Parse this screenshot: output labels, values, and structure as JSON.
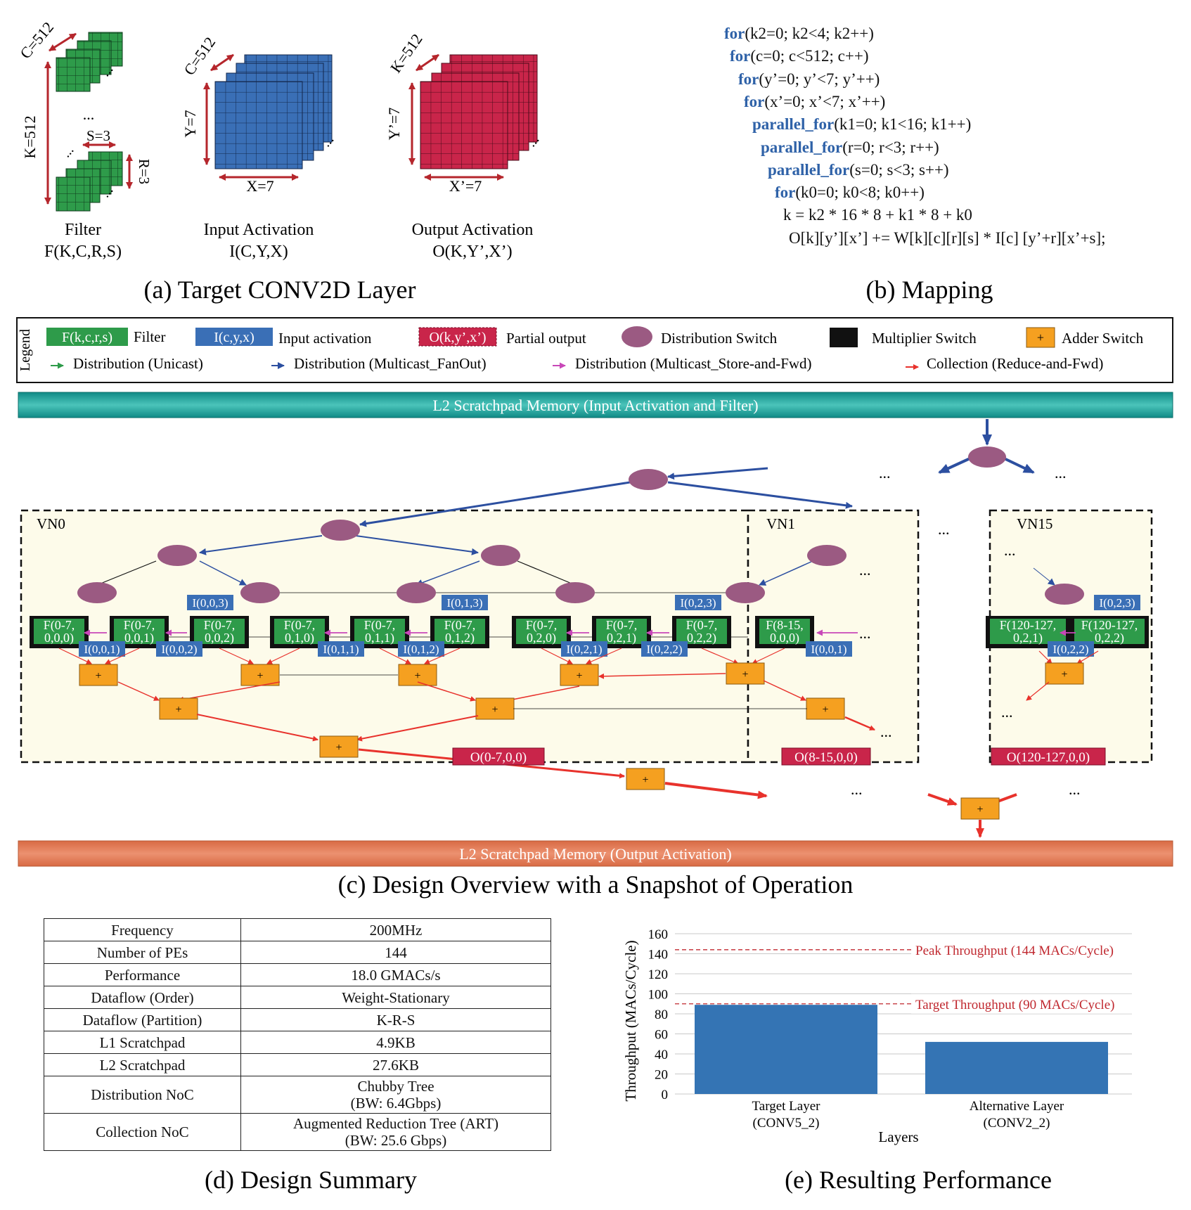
{
  "panel_a": {
    "caption": "(a) Target CONV2D Layer",
    "filter": {
      "title": "Filter",
      "dims": "F(K,C,R,S)",
      "c": "C=512",
      "k": "K=512",
      "s": "S=3",
      "r": "R=3"
    },
    "input": {
      "title": "Input Activation",
      "dims": "I(C,Y,X)",
      "c": "C=512",
      "y": "Y=7",
      "x": "X=7"
    },
    "output": {
      "title": "Output Activation",
      "dims": "O(K,Y’,X’)",
      "k": "K=512",
      "y": "Y’=7",
      "x": "X’=7"
    },
    "dots": "...",
    "colors": {
      "filter": "#2e9b4a",
      "input": "#3a6fb6",
      "output": "#c9254a",
      "arrow": "#b5262c"
    }
  },
  "panel_b": {
    "caption": "(b) Mapping",
    "code_lines": [
      {
        "kw": "for",
        "rest": "(k2=0; k2<4; k2++)"
      },
      {
        "kw": "for",
        "rest": "(c=0; c<512; c++)"
      },
      {
        "kw": "for",
        "rest": "(y’=0; y’<7; y’++)"
      },
      {
        "kw": "for",
        "rest": "(x’=0; x’<7; x’++)"
      },
      {
        "kw": "parallel_for",
        "rest": "(k1=0; k1<16; k1++)"
      },
      {
        "kw": "parallel_for",
        "rest": "(r=0; r<3; r++)"
      },
      {
        "kw": "parallel_for",
        "rest": "(s=0; s<3; s++)"
      },
      {
        "kw": "for",
        "rest": "(k0=0; k0<8; k0++)"
      },
      {
        "kw": "",
        "rest": "k = k2 * 16 * 8 + k1 * 8 + k0"
      },
      {
        "kw": "",
        "rest": "O[k][y’][x’] += W[k][c][r][s] * I[c] [y’+r][x’+s];"
      }
    ]
  },
  "legend": {
    "title": "Legend",
    "filter_box": "F(k,c,r,s)",
    "filter_label": "Filter",
    "input_box": "I(c,y,x)",
    "input_label": "Input activation",
    "output_box": "O(k,y’,x’)",
    "output_label": "Partial output",
    "dist_switch": "Distribution Switch",
    "mult_switch": "Multiplier Switch",
    "adder_symbol": "+",
    "adder_switch": "Adder Switch",
    "unicast": "Distribution (Unicast)",
    "multicast_fanout": "Distribution (Multicast_FanOut)",
    "multicast_saf": "Distribution (Multicast_Store-and-Fwd)",
    "collection": "Collection (Reduce-and-Fwd)"
  },
  "panel_c": {
    "caption": "(c) Design Overview with a Snapshot of Operation",
    "l2_input": "L2 Scratchpad Memory (Input Activation and Filter)",
    "l2_output": "L2 Scratchpad Memory (Output Activation)",
    "vn0": "VN0",
    "vn1": "VN1",
    "vn15": "VN15",
    "ellipsis": "...",
    "plus": "+",
    "filters": [
      "F(0-7,\n0,0,0)",
      "F(0-7,\n0,0,1)",
      "F(0-7,\n0,0,2)",
      "F(0-7,\n0,1,0)",
      "F(0-7,\n0,1,1)",
      "F(0-7,\n0,1,2)",
      "F(0-7,\n0,2,0)",
      "F(0-7,\n0,2,1)",
      "F(0-7,\n0,2,2)",
      "F(8-15,\n0,0,0)",
      "F(120-127,\n0,2,1)",
      "F(120-127,\n0,2,2)"
    ],
    "inputs_top": [
      "I(0,0,3)",
      "I(0,1,3)",
      "I(0,2,3)",
      "I(0,2,3)"
    ],
    "inputs_bottom": [
      "I(0,0,1)",
      "I(0,0,2)",
      "I(0,1,1)",
      "I(0,1,2)",
      "I(0,2,1)",
      "I(0,2,2)",
      "I(0,0,1)",
      "I(0,2,2)"
    ],
    "outputs": [
      "O(0-7,0,0)",
      "O(8-15,0,0)",
      "O(120-127,0,0)"
    ],
    "colors": {
      "dist_switch": "#9b5a82",
      "adder": "#f5a020",
      "l2_in": "#22a7a0",
      "l2_out": "#e07a52",
      "vn_bg": "#fdfbea",
      "blue": "#2c4fa0",
      "magenta": "#c848b8",
      "red": "#e8322c"
    }
  },
  "panel_d": {
    "caption": "(d) Design Summary",
    "rows": [
      {
        "key": "Frequency",
        "value": "200MHz"
      },
      {
        "key": "Number of PEs",
        "value": "144"
      },
      {
        "key": "Performance",
        "value": "18.0 GMACs/s"
      },
      {
        "key": "Dataflow (Order)",
        "value": "Weight-Stationary"
      },
      {
        "key": "Dataflow (Partition)",
        "value": "K-R-S"
      },
      {
        "key": "L1 Scratchpad",
        "value": "4.9KB"
      },
      {
        "key": "L2 Scratchpad",
        "value": "27.6KB"
      },
      {
        "key": "Distribution NoC",
        "value": "Chubby Tree",
        "value2": "(BW: 6.4Gbps)"
      },
      {
        "key": "Collection NoC",
        "value": "Augmented Reduction Tree (ART)",
        "value2": "(BW: 25.6 Gbps)"
      }
    ]
  },
  "panel_e": {
    "caption": "(e) Resulting Performance"
  },
  "chart_data": {
    "type": "bar",
    "categories": [
      "Target Layer\n(CONV5_2)",
      "Alternative Layer\n(CONV2_2)"
    ],
    "values": [
      89,
      52
    ],
    "xlabel": "Layers",
    "ylabel": "Throughput (MACs/Cycle)",
    "ylim": [
      0,
      160
    ],
    "yticks": [
      0,
      20,
      40,
      60,
      80,
      100,
      120,
      140,
      160
    ],
    "grid": true,
    "bar_color": "#3474b4",
    "reference_lines": [
      {
        "value": 144,
        "label": "Peak Throughput (144 MACs/Cycle)",
        "color": "#c0282f"
      },
      {
        "value": 90,
        "label": "Target Throughput (90 MACs/Cycle)",
        "color": "#c0282f"
      }
    ]
  }
}
